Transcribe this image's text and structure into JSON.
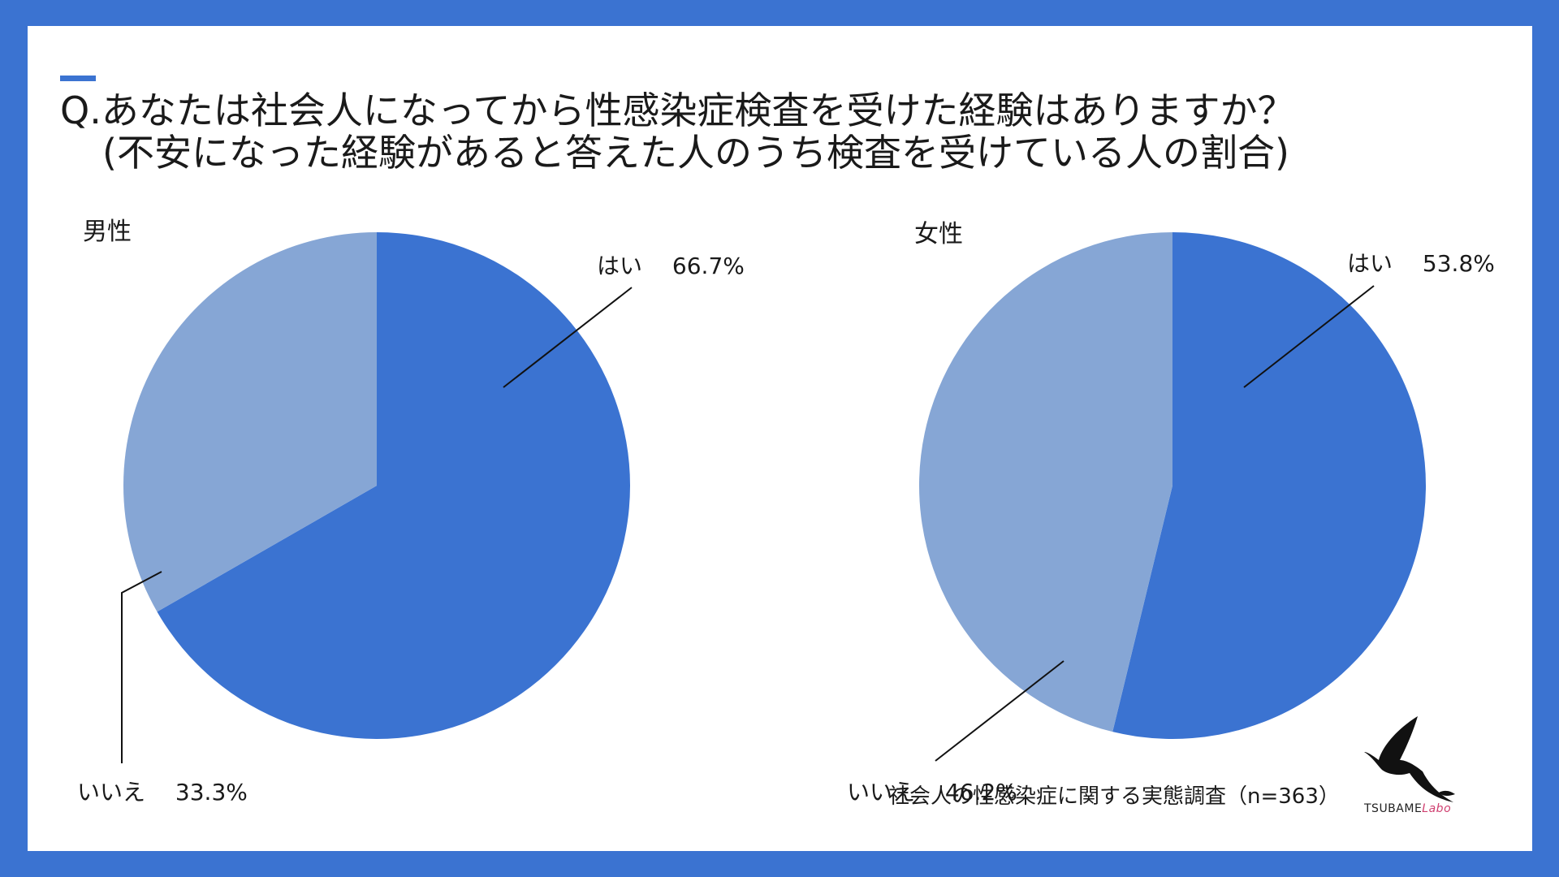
{
  "title": {
    "line1": "Q.あなたは社会人になってから性感染症検査を受けた経験はありますか？",
    "line2": "(不安になった経験があると答えた人のうち検査を受けている人の割合)"
  },
  "colors": {
    "accent": "#3b73d1",
    "yes": "#3b73d1",
    "no": "#86a6d5",
    "background": "#ffffff"
  },
  "chart_data": [
    {
      "type": "pie",
      "title": "男性",
      "slices": [
        {
          "label": "はい",
          "value": 66.7,
          "display": "66.7%",
          "color": "#3b73d1"
        },
        {
          "label": "いいえ",
          "value": 33.3,
          "display": "33.3%",
          "color": "#86a6d5"
        }
      ]
    },
    {
      "type": "pie",
      "title": "女性",
      "slices": [
        {
          "label": "はい",
          "value": 53.8,
          "display": "53.8%",
          "color": "#3b73d1"
        },
        {
          "label": "いいえ",
          "value": 46.2,
          "display": "46.2%",
          "color": "#86a6d5"
        }
      ]
    }
  ],
  "footnote": "社会人の性感染症に関する実態調査（n=363）",
  "logo": {
    "brand": "TSUBAME",
    "suffix": "Labo",
    "icon": "swallow-icon"
  }
}
